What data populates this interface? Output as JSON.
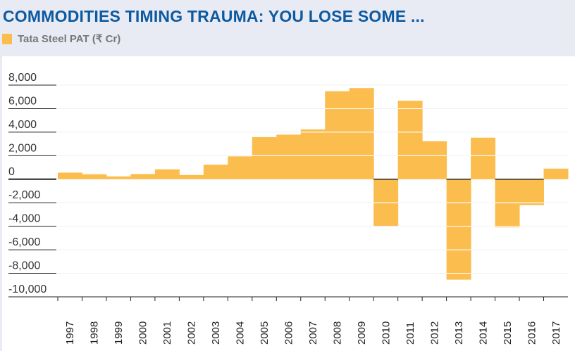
{
  "header": {
    "title": "COMMODITIES TIMING TRAUMA: YOU LOSE SOME ...",
    "legend_label": "Tata Steel PAT (₹ Cr)"
  },
  "chart_data": {
    "type": "bar",
    "title": "COMMODITIES TIMING TRAUMA: YOU LOSE SOME ...",
    "xlabel": "",
    "ylabel": "",
    "ylim": [
      -10000,
      8000
    ],
    "yticks": [
      8000,
      6000,
      4000,
      2000,
      0,
      -2000,
      -4000,
      -6000,
      -8000,
      -10000
    ],
    "ytick_labels": [
      "8,000",
      "6,000",
      "4,000",
      "2,000",
      "0",
      "-2,000",
      "-4,000",
      "-6,000",
      "-8,000",
      "-10,000"
    ],
    "grid": true,
    "legend_position": "top-left",
    "color": "#fbbd4e",
    "categories": [
      "1997",
      "1998",
      "1999",
      "2000",
      "2001",
      "2002",
      "2003",
      "2004",
      "2005",
      "2006",
      "2007",
      "2008",
      "2009",
      "2010",
      "2011",
      "2012",
      "2013",
      "2014",
      "2015",
      "2016",
      "2017"
    ],
    "series": [
      {
        "name": "Tata Steel PAT (₹ Cr)",
        "values": [
          560,
          420,
          240,
          440,
          840,
          360,
          1240,
          1940,
          3580,
          3790,
          4230,
          7480,
          7750,
          -3990,
          6670,
          3230,
          -8540,
          3530,
          -4090,
          -2200,
          900
        ]
      }
    ]
  }
}
